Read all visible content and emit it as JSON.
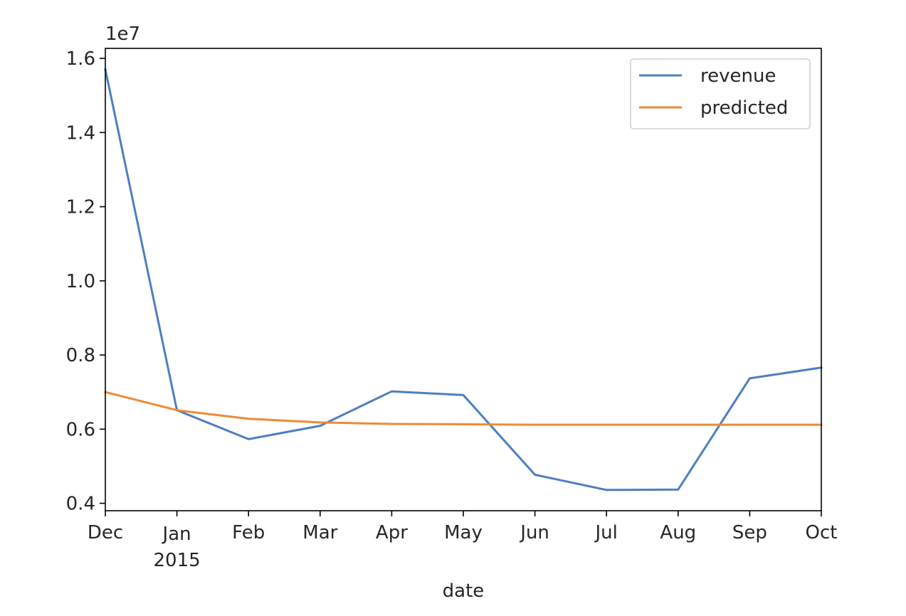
{
  "chart_data": {
    "type": "line",
    "xlabel": "date",
    "ylabel": "",
    "y_offset_label": "1e7",
    "categories": [
      "Dec",
      "Jan",
      "Feb",
      "Mar",
      "Apr",
      "May",
      "Jun",
      "Jul",
      "Aug",
      "Sep",
      "Oct"
    ],
    "year_label": {
      "index": 1,
      "text": "2015"
    },
    "ylim": [
      0.38,
      1.627
    ],
    "yticks": [
      0.4,
      0.6,
      0.8,
      1.0,
      1.2,
      1.4,
      1.6
    ],
    "ytick_labels": [
      "0.4",
      "0.6",
      "0.8",
      "1.0",
      "1.2",
      "1.4",
      "1.6"
    ],
    "grid": false,
    "legend_position": "top-right",
    "series": [
      {
        "name": "revenue",
        "color": "#4c7fbf",
        "values": [
          1.57,
          0.651,
          0.573,
          0.609,
          0.702,
          0.692,
          0.477,
          0.436,
          0.437,
          0.737,
          0.766
        ]
      },
      {
        "name": "predicted",
        "color": "#ee8a34",
        "values": [
          0.7,
          0.651,
          0.628,
          0.618,
          0.614,
          0.613,
          0.612,
          0.612,
          0.612,
          0.612,
          0.612
        ]
      }
    ]
  }
}
